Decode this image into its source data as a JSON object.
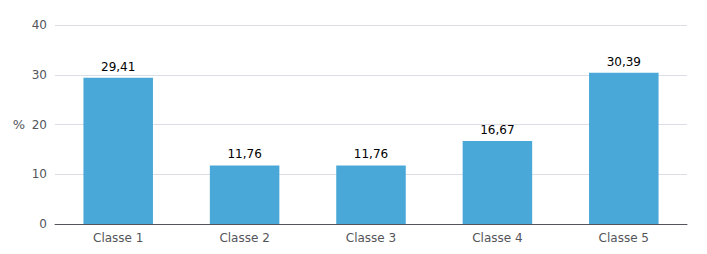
{
  "chart_data": {
    "type": "bar",
    "categories": [
      "Classe 1",
      "Classe 2",
      "Classe 3",
      "Classe 4",
      "Classe 5"
    ],
    "values": [
      29.41,
      11.76,
      11.76,
      16.67,
      30.39
    ],
    "value_labels": [
      "29,41",
      "11,76",
      "11,76",
      "16,67",
      "30,39"
    ],
    "color": "#4AA8D8",
    "ylabel": "%",
    "ylim": [
      0,
      40
    ],
    "yticks": [
      0,
      10,
      20,
      30,
      40
    ],
    "grid": true,
    "data_labels": true
  }
}
